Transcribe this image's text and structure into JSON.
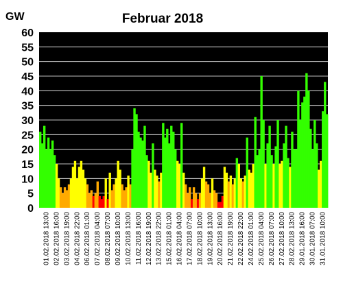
{
  "chart_data": {
    "type": "area",
    "title": "Februar 2018",
    "ylabel": "GW",
    "xlabel": "",
    "ylim": [
      0,
      60
    ],
    "yticks": [
      0,
      5,
      10,
      15,
      20,
      25,
      30,
      35,
      40,
      45,
      50,
      55,
      60
    ],
    "grid": true,
    "legend": "none",
    "colors": {
      "background": "#000000",
      "grid": "#ffffff",
      "high": "#33ff00",
      "medium": "#ffff00",
      "low_medium": "#ffaa00",
      "low": "#ff0000"
    },
    "color_thresholds": [
      5,
      10,
      17
    ],
    "x_tick_labels": [
      "01.02.2018 13:00",
      "02.02.2018 16:00",
      "03.02.2018 19:00",
      "04.02.2018 22:00",
      "06.02.2018 01:00",
      "07.02.2018 04:00",
      "08.02.2018 07:00",
      "09.02.2018 10:00",
      "10.02.2018 13:00",
      "11.02.2018 16:00",
      "12.02.2018 19:00",
      "13.02.2018 22:00",
      "15.02.2018 01:00",
      "16.02.2018 04:00",
      "17.02.2018 07:00",
      "18.02.2018 10:00",
      "19.02.2018 13:00",
      "20.02.2018 16:00",
      "21.02.2018 19:00",
      "22.02.2018 22:00",
      "24.02.2018 01:00",
      "25.02.2018 04:00",
      "26.02.2018 07:00",
      "27.02.2018 10:00",
      "28.02.2018 13:00",
      "29.01.2018 16:00",
      "30.01.2018 07:00",
      "31.01.2018 10:00"
    ],
    "series": [
      {
        "values": [
          26,
          22,
          28,
          20,
          24,
          20,
          23,
          18,
          15,
          10,
          7,
          5,
          7,
          6,
          8,
          10,
          14,
          16,
          10,
          14,
          16,
          13,
          10,
          8,
          5,
          6,
          4,
          5,
          9,
          4,
          3,
          4,
          10,
          3,
          12,
          6,
          8,
          10,
          16,
          13,
          8,
          6,
          7,
          11,
          8,
          20,
          34,
          32,
          26,
          24,
          23,
          28,
          18,
          16,
          12,
          22,
          13,
          11,
          9,
          12,
          29,
          24,
          27,
          22,
          28,
          26,
          20,
          16,
          15,
          29,
          12,
          8,
          5,
          7,
          3,
          7,
          5,
          3,
          5,
          10,
          14,
          9,
          8,
          5,
          10,
          6,
          5,
          2,
          2,
          4,
          14,
          12,
          9,
          11,
          8,
          10,
          17,
          15,
          10,
          9,
          11,
          24,
          13,
          12,
          15,
          31,
          18,
          20,
          45,
          30,
          15,
          22,
          28,
          18,
          15,
          21,
          30,
          15,
          16,
          22,
          28,
          17,
          14,
          26,
          20,
          20,
          40,
          30,
          36,
          38,
          46,
          40,
          27,
          20,
          30,
          22,
          13,
          16,
          33,
          43,
          32
        ]
      }
    ]
  }
}
